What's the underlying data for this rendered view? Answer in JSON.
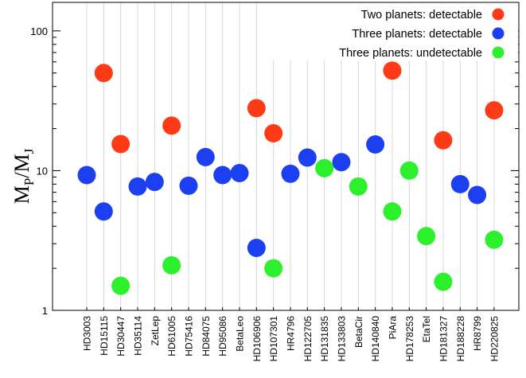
{
  "chart_data": {
    "type": "scatter",
    "xlabel": "",
    "ylabel": {
      "base": "M",
      "sub_num": "P",
      "slash": "/",
      "base2": "M",
      "sub_den": "J"
    },
    "yscale": "log",
    "ylim": [
      1,
      160
    ],
    "yticks": [
      1,
      10,
      100
    ],
    "ytick_labels": [
      "1",
      "10",
      "100"
    ],
    "grid": "vertical",
    "legend_position": "top-right",
    "categories": [
      "HD3003",
      "HD15115",
      "HD30447",
      "HD35114",
      "ZetLep",
      "HD61005",
      "HD75416",
      "HD84075",
      "HD95086",
      "BetaLeo",
      "HD106906",
      "HD107301",
      "HR4796",
      "HD122705",
      "HD131835",
      "HD133803",
      "BetaCir",
      "HD140840",
      "PiAra",
      "HD178253",
      "EtaTel",
      "HD181327",
      "HD188228",
      "HR8799",
      "HD220825"
    ],
    "series": [
      {
        "name": "Two planets: detectable",
        "color": "#ff3a17",
        "points": [
          {
            "x": "HD15115",
            "y": 50
          },
          {
            "x": "HD30447",
            "y": 15.5
          },
          {
            "x": "HD61005",
            "y": 21
          },
          {
            "x": "HD106906",
            "y": 28
          },
          {
            "x": "HD107301",
            "y": 18.5
          },
          {
            "x": "PiAra",
            "y": 52
          },
          {
            "x": "HD181327",
            "y": 16.5
          },
          {
            "x": "HD220825",
            "y": 27
          }
        ]
      },
      {
        "name": "Three planets: detectable",
        "color": "#1c3ff2",
        "points": [
          {
            "x": "HD3003",
            "y": 9.3
          },
          {
            "x": "HD15115",
            "y": 5.1
          },
          {
            "x": "HD35114",
            "y": 7.7
          },
          {
            "x": "ZetLep",
            "y": 8.3
          },
          {
            "x": "HD75416",
            "y": 7.8
          },
          {
            "x": "HD84075",
            "y": 12.5
          },
          {
            "x": "HD95086",
            "y": 9.3
          },
          {
            "x": "BetaLeo",
            "y": 9.6
          },
          {
            "x": "HD106906",
            "y": 2.8
          },
          {
            "x": "HR4796",
            "y": 9.5
          },
          {
            "x": "HD122705",
            "y": 12.4
          },
          {
            "x": "HD133803",
            "y": 11.5
          },
          {
            "x": "HD140840",
            "y": 15.4
          },
          {
            "x": "HD188228",
            "y": 8.0
          },
          {
            "x": "HR8799",
            "y": 6.7
          }
        ]
      },
      {
        "name": "Three planets: undetectable",
        "color": "#2df02d",
        "points": [
          {
            "x": "HD30447",
            "y": 1.5
          },
          {
            "x": "HD61005",
            "y": 2.1
          },
          {
            "x": "HD107301",
            "y": 2.0
          },
          {
            "x": "HD131835",
            "y": 10.4
          },
          {
            "x": "BetaCir",
            "y": 7.7
          },
          {
            "x": "PiAra",
            "y": 5.1
          },
          {
            "x": "HD178253",
            "y": 10.0
          },
          {
            "x": "EtaTel",
            "y": 3.4
          },
          {
            "x": "HD181327",
            "y": 1.6
          },
          {
            "x": "HD220825",
            "y": 3.2
          }
        ]
      }
    ]
  }
}
